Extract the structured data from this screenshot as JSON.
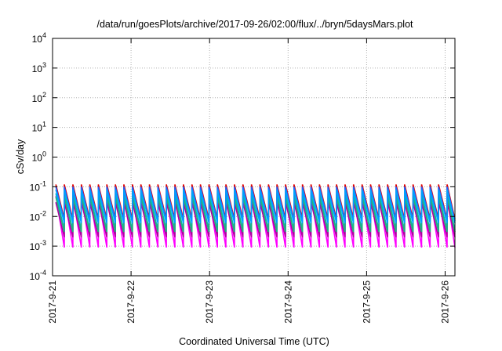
{
  "chart_data": {
    "type": "line",
    "title": "/data/run/goesPlots/archive/2017-09-26/02:00/flux/../bryn/5daysMars.plot",
    "xlabel": "Coordinated Universal Time (UTC)",
    "ylabel": "cSv/day",
    "y_scale": "log",
    "ylim": [
      0.0001,
      10000
    ],
    "y_ticks": [
      {
        "value": 0.0001,
        "base": "10",
        "exp": "-4"
      },
      {
        "value": 0.001,
        "base": "10",
        "exp": "-3"
      },
      {
        "value": 0.01,
        "base": "10",
        "exp": "-2"
      },
      {
        "value": 0.1,
        "base": "10",
        "exp": "-1"
      },
      {
        "value": 1,
        "base": "10",
        "exp": "0"
      },
      {
        "value": 10,
        "base": "10",
        "exp": "1"
      },
      {
        "value": 100,
        "base": "10",
        "exp": "2"
      },
      {
        "value": 1000,
        "base": "10",
        "exp": "3"
      },
      {
        "value": 10000,
        "base": "10",
        "exp": "4"
      }
    ],
    "xlim": [
      "2017-09-21",
      "2017-09-26T03:00"
    ],
    "x_ticks": [
      "2017-9-21",
      "2017-9-22",
      "2017-9-23",
      "2017-9-24",
      "2017-9-25",
      "2017-9-26"
    ],
    "grid": true,
    "pattern": {
      "period_hours": 2.6,
      "onset_hours": 1.0,
      "note_free": true
    },
    "series": [
      {
        "color": "#ff00ff",
        "peak": 0.05,
        "trough": 0.0009
      },
      {
        "color": "#b000a0",
        "peak": 0.03,
        "trough": 0.002
      },
      {
        "color": "#00c0c0",
        "peak": 0.06,
        "trough": 0.0035
      },
      {
        "color": "#20b080",
        "peak": 0.045,
        "trough": 0.003
      },
      {
        "color": "#e00000",
        "peak": 0.12,
        "trough": 0.008
      },
      {
        "color": "#2060ff",
        "peak": 0.1,
        "trough": 0.007
      },
      {
        "color": "#00a0ff",
        "peak": 0.08,
        "trough": 0.006
      }
    ]
  }
}
